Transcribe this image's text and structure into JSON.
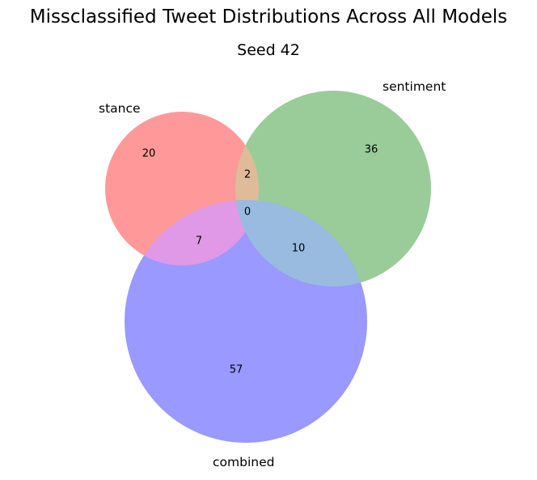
{
  "title": "Missclassified Tweet Distributions Across All Models",
  "subtitle": "Seed 42",
  "sets": [
    {
      "key": "stance",
      "label": "stance",
      "color": "#ff9999"
    },
    {
      "key": "sentiment",
      "label": "sentiment",
      "color": "#99cc99"
    },
    {
      "key": "combined",
      "label": "combined",
      "color": "#9999ff"
    }
  ],
  "regions": {
    "stance_only": "20",
    "sentiment_only": "36",
    "combined_only": "57",
    "stance_sentiment": "2",
    "stance_combined": "7",
    "sentiment_combined": "10",
    "all_three": "0"
  },
  "colors": {
    "stance_sentiment": "#e0bb99",
    "stance_combined": "#e099e6",
    "sentiment_combined": "#99bbe0"
  }
}
